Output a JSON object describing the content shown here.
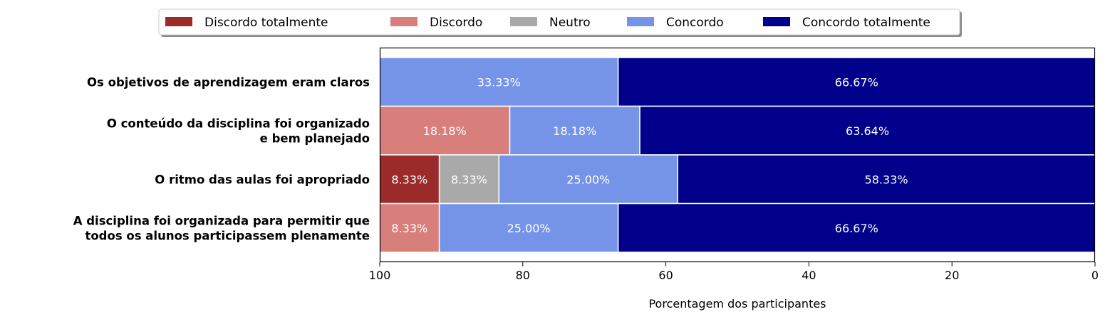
{
  "chart_data": {
    "type": "bar",
    "orientation": "horizontal-stacked",
    "xlabel": "Porcentagem dos participantes",
    "xlim": [
      100,
      0
    ],
    "xticks": [
      "100",
      "80",
      "60",
      "40",
      "20",
      "0"
    ],
    "legend_position": "top-center",
    "series": [
      {
        "name": "Discordo totalmente",
        "color": "#9b2a2a",
        "values": [
          0,
          0,
          8.33,
          0
        ]
      },
      {
        "name": "Discordo",
        "color": "#d87f7c",
        "values": [
          0,
          18.18,
          0,
          8.33
        ]
      },
      {
        "name": "Neutro",
        "color": "#a9a9a9",
        "values": [
          0,
          0,
          8.33,
          0
        ]
      },
      {
        "name": "Concordo",
        "color": "#7594e8",
        "values": [
          33.33,
          18.18,
          25.0,
          25.0
        ]
      },
      {
        "name": "Concordo totalmente",
        "color": "#00008b",
        "values": [
          66.67,
          63.64,
          58.33,
          66.67
        ]
      }
    ],
    "categories": [
      [
        "Os objetivos de aprendizagem eram claros"
      ],
      [
        "O conteúdo da disciplina foi organizado",
        "e bem planejado"
      ],
      [
        "O ritmo das aulas foi apropriado"
      ],
      [
        "A disciplina foi organizada para permitir que",
        "todos os alunos participassem plenamente"
      ]
    ],
    "data_labels": [
      [
        null,
        null,
        null,
        "33.33%",
        "66.67%"
      ],
      [
        null,
        "18.18%",
        null,
        "18.18%",
        "63.64%"
      ],
      [
        "8.33%",
        null,
        "8.33%",
        "25.00%",
        "58.33%"
      ],
      [
        null,
        "8.33%",
        null,
        "25.00%",
        "66.67%"
      ]
    ]
  }
}
